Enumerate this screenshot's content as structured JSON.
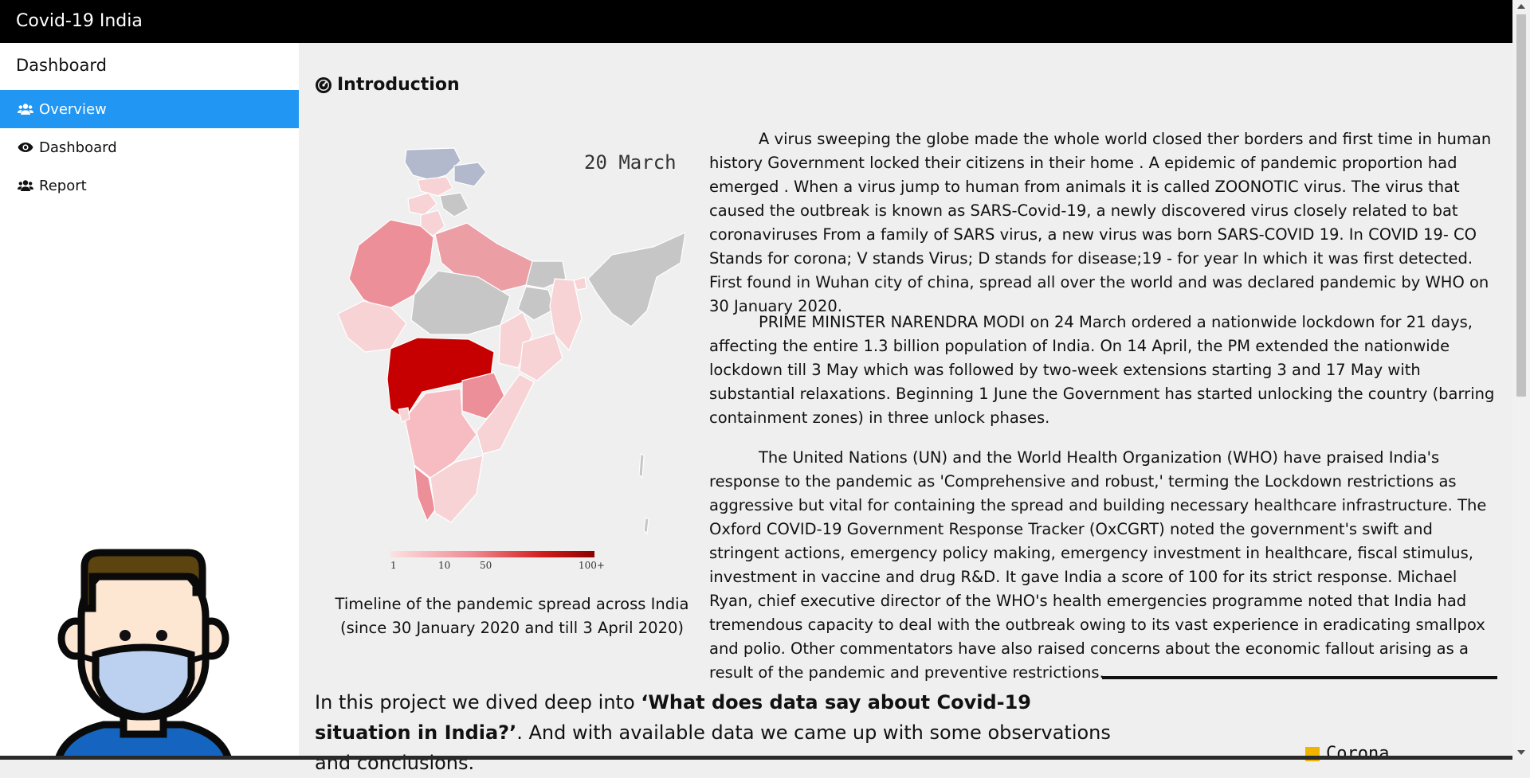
{
  "topbar": {
    "brand": "Covid-19 India"
  },
  "sidebar": {
    "title": "Dashboard",
    "items": [
      {
        "label": "Overview",
        "icon": "users-icon",
        "active": true
      },
      {
        "label": "Dashboard",
        "icon": "eye-icon",
        "active": false
      },
      {
        "label": "Report",
        "icon": "users-icon",
        "active": false
      }
    ]
  },
  "main": {
    "section_title": "Introduction",
    "section_icon": "dashboard-icon",
    "map": {
      "date_label": "20 March",
      "legend_ticks": [
        "1",
        "10",
        "50",
        "100+"
      ],
      "caption_line1": "Timeline of the pandemic spread across India",
      "caption_line2": "(since 30 January 2020 and till 3 April 2020)"
    },
    "paragraphs": [
      "A virus sweeping the globe made the whole world closed ther borders and first time in human history Government locked their citizens in their home . A epidemic of pandemic proportion had emerged . When a virus jump to human from animals it is called ZOONOTIC virus. The virus that caused the outbreak is known as SARS-Covid-19, a newly discovered virus closely related to bat coronaviruses From a family of SARS virus, a new virus was born SARS-COVID 19. In COVID 19- CO Stands for corona; V stands Virus; D stands for disease;19 - for year In which it was first detected. First found in Wuhan city of china, spread all over the world and was declared pandemic by WHO on 30 January 2020.",
      "PRIME MINISTER NARENDRA MODI on 24 March ordered a nationwide lockdown for 21 days, affecting the entire 1.3 billion population of India. On 14 April, the PM extended the nationwide lockdown till 3 May which was followed by two-week extensions starting 3 and 17 May with substantial relaxations. Beginning 1 June the Government has started unlocking the country (barring containment zones) in three unlock phases.",
      "The United Nations (UN) and the World Health Organization (WHO) have praised India's response to the pandemic as 'Comprehensive and robust,' terming the Lockdown restrictions as aggressive but vital for containing the spread and building necessary healthcare infrastructure. The Oxford COVID-19 Government Response Tracker (OxCGRT) noted the government's swift and stringent actions, emergency policy making, emergency investment in healthcare, fiscal stimulus, investment in vaccine and drug R&D. It gave India a score of 100 for its strict response. Michael Ryan, chief executive director of the WHO's health emergencies programme noted that India had tremendous capacity to deal with the outbreak owing to its vast experience in eradicating smallpox and polio. Other commentators have also raised concerns about the economic fallout arising as a result of the pandemic and preventive restrictions."
    ],
    "project": {
      "pre": "In this project we dived deep into ",
      "bold": "‘What does data say about Covid-19 situation in India?’",
      "post": ". And with available data we came up with some observations and conclusions."
    },
    "legend_corona": "Corona"
  },
  "colors": {
    "topbar": "#000000",
    "active_nav": "#2196f3",
    "map_dark": "#c00000",
    "map_light": "#fcd4d6",
    "map_grey": "#c9c9c9"
  }
}
